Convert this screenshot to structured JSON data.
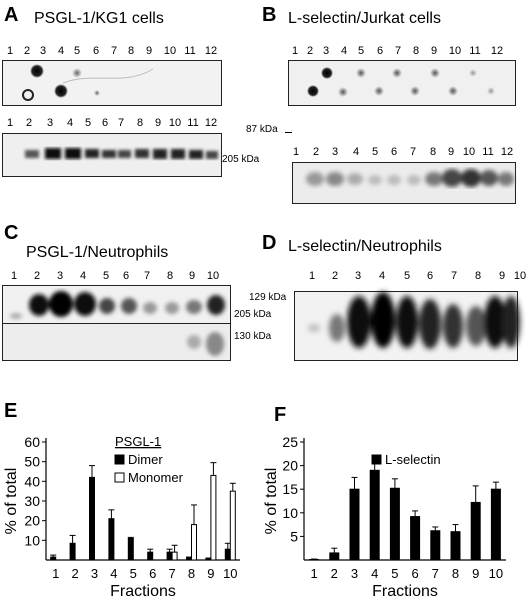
{
  "panels": {
    "A": {
      "letter": "A",
      "title": "PSGL-1/KG1 cells",
      "lanes_top": [
        "1",
        "2",
        "3",
        "4",
        "5",
        "6",
        "7",
        "8",
        "9",
        "10",
        "11",
        "12"
      ],
      "lanes_bottom": [
        "1",
        "2",
        "3",
        "4",
        "5",
        "6",
        "7",
        "8",
        "9",
        "10",
        "11",
        "12"
      ],
      "marker": "205 kDa"
    },
    "B": {
      "letter": "B",
      "title": "L-selectin/Jurkat cells",
      "lanes_top": [
        "1",
        "2",
        "3",
        "4",
        "5",
        "6",
        "7",
        "8",
        "9",
        "10",
        "11",
        "12"
      ],
      "lanes_bottom": [
        "1",
        "2",
        "3",
        "4",
        "5",
        "6",
        "7",
        "8",
        "9",
        "10",
        "11",
        "12"
      ],
      "marker": "87 kDa"
    },
    "C": {
      "letter": "C",
      "title": "PSGL-1/Neutrophils",
      "lanes": [
        "1",
        "2",
        "3",
        "4",
        "5",
        "6",
        "7",
        "8",
        "9",
        "10"
      ],
      "marker_top": "205 kDa",
      "marker_bottom": "130 kDa"
    },
    "D": {
      "letter": "D",
      "title": "L-selectin/Neutrophils",
      "lanes": [
        "1",
        "2",
        "3",
        "4",
        "5",
        "6",
        "7",
        "8",
        "9",
        "10"
      ],
      "marker": "129 kDa"
    },
    "E": {
      "letter": "E"
    },
    "F": {
      "letter": "F"
    }
  },
  "chart_data": [
    {
      "type": "bar",
      "panel": "E",
      "categories": [
        "1",
        "2",
        "3",
        "4",
        "5",
        "6",
        "7",
        "8",
        "9",
        "10"
      ],
      "series": [
        {
          "name": "Dimer",
          "color": "#000000",
          "values": [
            1.5,
            8.5,
            42,
            21,
            11,
            4,
            4,
            1,
            0.5,
            5.5
          ],
          "errors": [
            1,
            4,
            6,
            4.5,
            0.5,
            1.5,
            1.5,
            0.5,
            0.5,
            3
          ]
        },
        {
          "name": "Monomer",
          "color": "#ffffff",
          "values": [
            0,
            0,
            0,
            0,
            0,
            0,
            4,
            18,
            43,
            35
          ],
          "errors": [
            0,
            0,
            0,
            0,
            0,
            0,
            3.5,
            10,
            6.5,
            4
          ]
        }
      ],
      "legend_title": "PSGL-1",
      "xlabel": "Fractions",
      "ylabel": "% of total",
      "yticks": [
        10,
        20,
        30,
        40,
        50,
        60
      ],
      "ylim": [
        0,
        60
      ],
      "legend": "top-right"
    },
    {
      "type": "bar",
      "panel": "F",
      "categories": [
        "1",
        "2",
        "3",
        "4",
        "5",
        "6",
        "7",
        "8",
        "9",
        "10"
      ],
      "series": [
        {
          "name": "L-selectin",
          "color": "#000000",
          "values": [
            0.1,
            1.5,
            15,
            19,
            15.2,
            9.2,
            6.2,
            6,
            12.2,
            15
          ],
          "errors": [
            0.1,
            1,
            2.5,
            1.5,
            2,
            1.2,
            0.8,
            1.5,
            3.5,
            1.5
          ]
        }
      ],
      "xlabel": "Fractions",
      "ylabel": "% of total",
      "yticks": [
        5,
        10,
        15,
        20,
        25
      ],
      "ylim": [
        0,
        25
      ],
      "legend": "top-right"
    }
  ]
}
